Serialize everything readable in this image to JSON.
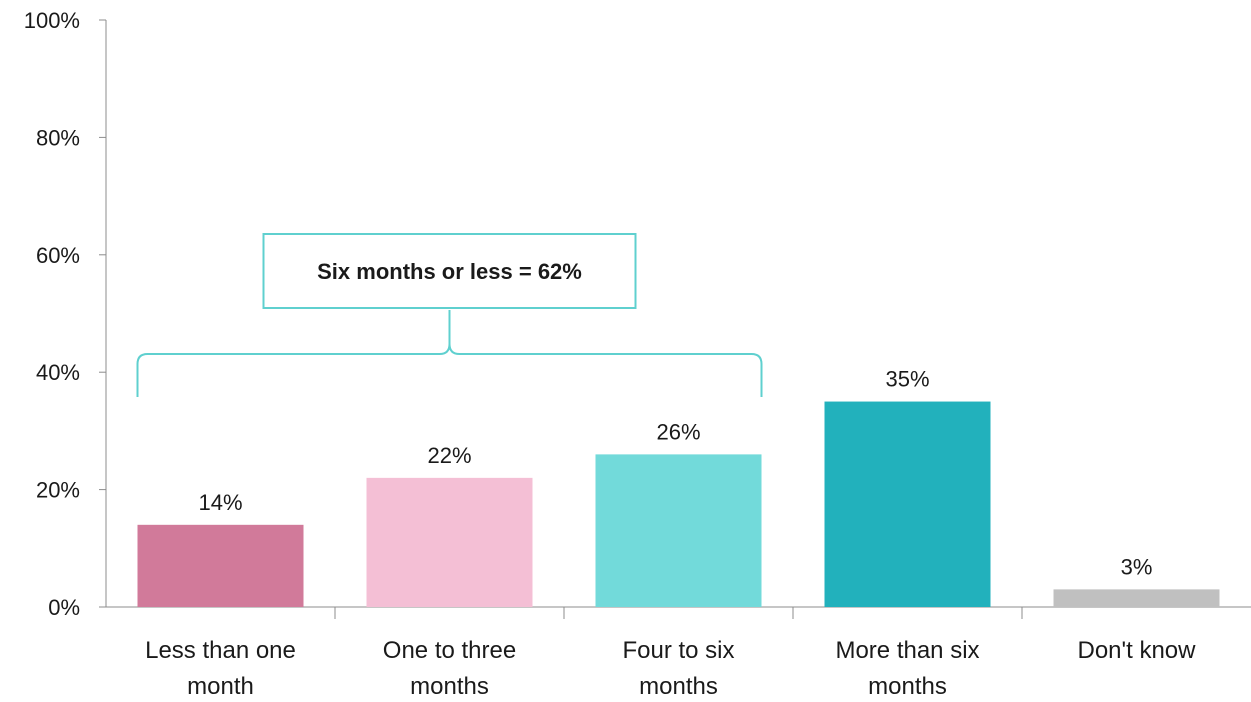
{
  "chart_data": {
    "type": "bar",
    "categories": [
      [
        "Less than one",
        "month"
      ],
      [
        "One to three",
        "months"
      ],
      [
        "Four to six",
        "months"
      ],
      [
        "More than six",
        "months"
      ],
      [
        "Don't know"
      ]
    ],
    "values": [
      14,
      22,
      26,
      35,
      3
    ],
    "value_labels": [
      "14%",
      "22%",
      "26%",
      "35%",
      "3%"
    ],
    "colors": [
      "#d17a9a",
      "#f4bfd5",
      "#72dada",
      "#22b1bc",
      "#c0c0c0"
    ],
    "ylim": [
      0,
      100
    ],
    "yticks": [
      0,
      20,
      40,
      60,
      80,
      100
    ],
    "ytick_labels": [
      "0%",
      "20%",
      "40%",
      "60%",
      "80%",
      "100%"
    ],
    "grid": false,
    "title": "",
    "xlabel": "",
    "ylabel": "",
    "annotation": {
      "text": "Six months or less = 62%",
      "spans_categories": [
        0,
        2
      ],
      "color": "#5fd0cf"
    }
  }
}
